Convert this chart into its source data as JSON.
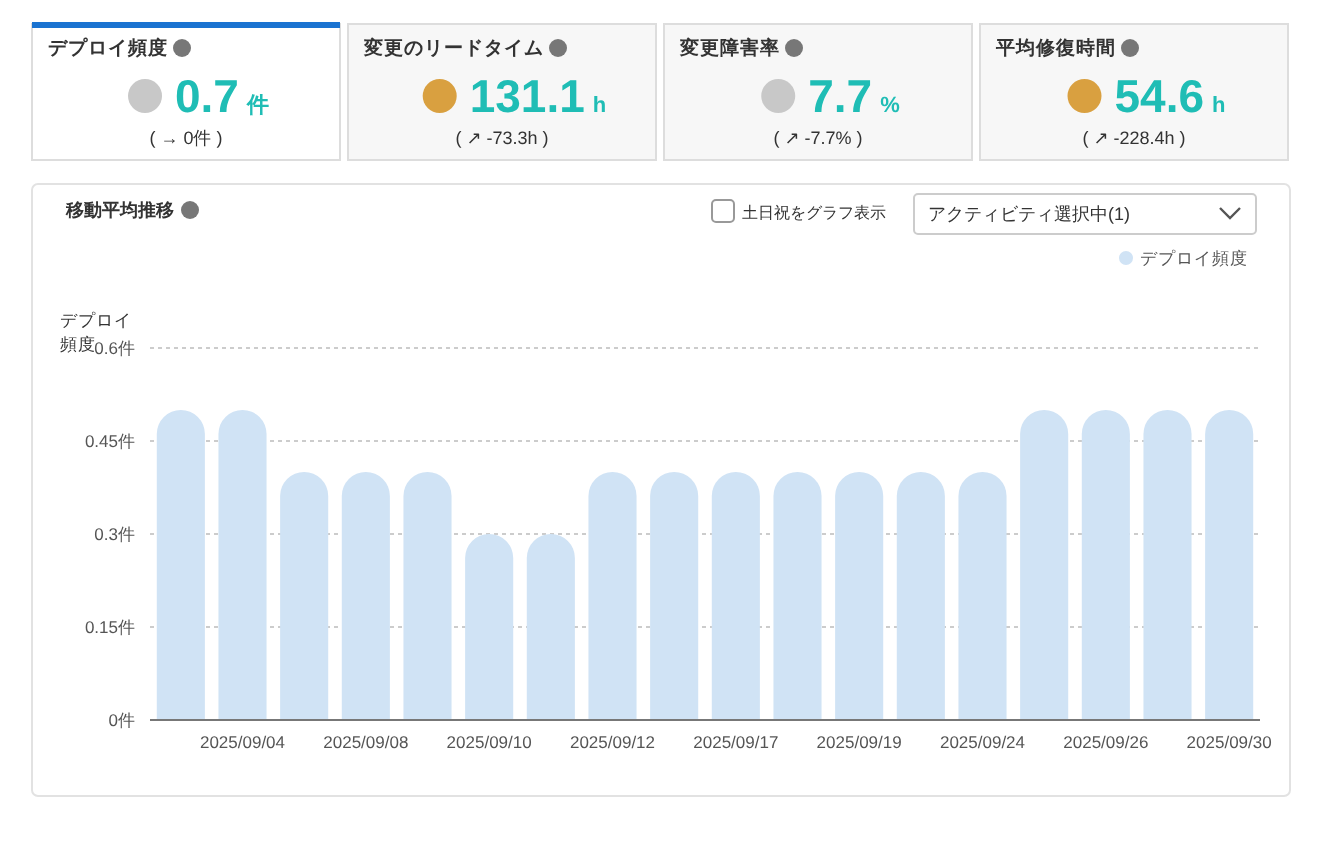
{
  "chart_data": [
    {
      "type": "other",
      "title": "デプロイ頻度",
      "annotations": [
        "0.7",
        "件",
        "( → 0件 )"
      ]
    },
    {
      "type": "other",
      "title": "変更のリードタイム",
      "annotations": [
        "131.1",
        "h",
        "( ↗ -73.3h )"
      ]
    },
    {
      "type": "other",
      "title": "変更障害率",
      "annotations": [
        "7.7",
        "%",
        "( ↗ -7.7% )"
      ]
    },
    {
      "type": "other",
      "title": "平均修復時間",
      "annotations": [
        "54.6",
        "h",
        "( ↗ -228.4h )"
      ]
    },
    {
      "type": "bar",
      "title": "移動平均推移",
      "ylabel": "デプロイ頻度",
      "annotations": [
        "土日祝をグラフ表示",
        "アクティビティ選択中(1)"
      ],
      "categories": [
        null,
        "2025/09/04",
        null,
        "2025/09/08",
        null,
        "2025/09/10",
        null,
        "2025/09/12",
        null,
        "2025/09/17",
        null,
        "2025/09/19",
        null,
        "2025/09/24",
        null,
        "2025/09/26",
        null,
        "2025/09/30"
      ],
      "series": [
        {
          "name": "デプロイ頻度",
          "color": "#d0e3f5",
          "values": [
            0.5,
            0.5,
            0.4,
            0.4,
            0.4,
            0.3,
            0.3,
            0.4,
            0.4,
            0.4,
            0.4,
            0.4,
            0.4,
            0.4,
            0.5,
            0.5,
            0.5,
            0.5
          ]
        }
      ],
      "ylim": [
        0,
        0.6
      ],
      "yticks": [
        {
          "value": 0,
          "label": "0件"
        },
        {
          "value": 0.15,
          "label": "0.15件"
        },
        {
          "value": 0.3,
          "label": "0.3件"
        },
        {
          "value": 0.45,
          "label": "0.45件"
        },
        {
          "value": 0.6,
          "label": "0.6件"
        }
      ],
      "grid": "y",
      "legend": "top right"
    }
  ]
}
